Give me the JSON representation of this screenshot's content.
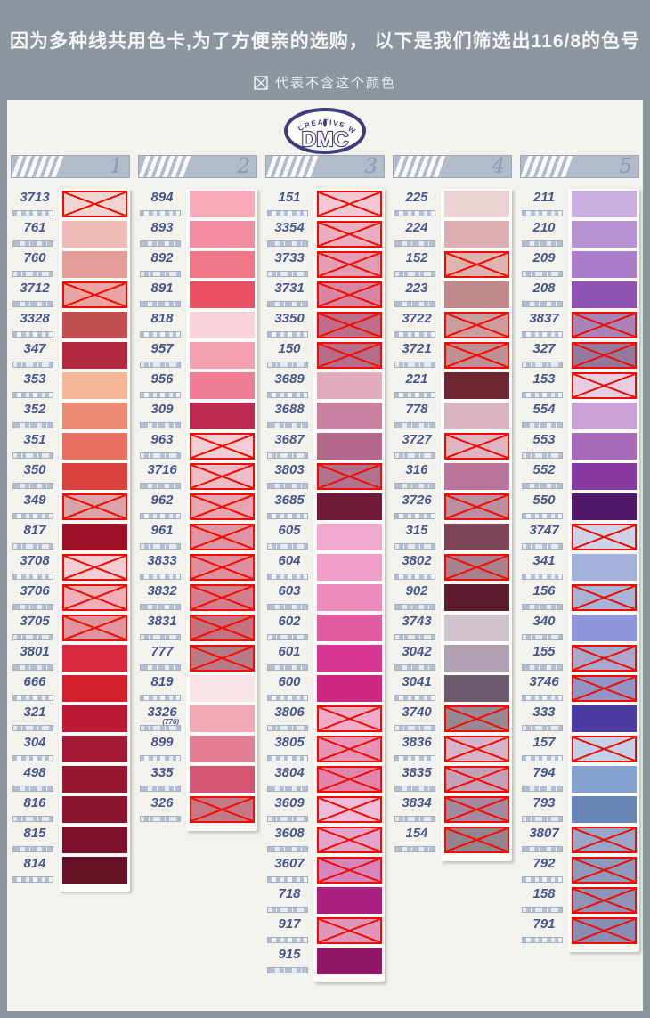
{
  "header": {
    "line1": "因为多种线共用色卡,为了方便亲的选购， 以下是我们筛选出116/8的色号",
    "line2": "代表不含这个颜色"
  },
  "logo": {
    "arc_text": "CREATIVE WORLD",
    "name": "DMC"
  },
  "theme": {
    "page_bg": "#8d959e",
    "card_bg": "#f3f2ec",
    "column_header_bg": "#b1bbc9",
    "code_text": "#46568c",
    "cross_red": "#f30b00",
    "strip_white": "#fcfbf7",
    "logo_indigo": "#3f3c7c"
  },
  "columns": [
    {
      "number": "1",
      "rows": [
        {
          "code": "3713",
          "color": "#f2d4d1",
          "excluded": true
        },
        {
          "code": "761",
          "color": "#eebbb6",
          "excluded": false
        },
        {
          "code": "760",
          "color": "#e29d99",
          "excluded": false
        },
        {
          "code": "3712",
          "color": "#e9a5a2",
          "excluded": true
        },
        {
          "code": "3328",
          "color": "#c14f50",
          "excluded": false
        },
        {
          "code": "347",
          "color": "#b3293f",
          "excluded": false
        },
        {
          "code": "353",
          "color": "#f6b698",
          "excluded": false
        },
        {
          "code": "352",
          "color": "#ec8b74",
          "excluded": false
        },
        {
          "code": "351",
          "color": "#e8705e",
          "excluded": false
        },
        {
          "code": "350",
          "color": "#d8423a",
          "excluded": false
        },
        {
          "code": "349",
          "color": "#d9a3a8",
          "excluded": true
        },
        {
          "code": "817",
          "color": "#9c1126",
          "excluded": false
        },
        {
          "code": "3708",
          "color": "#f6cdd3",
          "excluded": true
        },
        {
          "code": "3706",
          "color": "#f0aeb6",
          "excluded": true
        },
        {
          "code": "3705",
          "color": "#e2949e",
          "excluded": true
        },
        {
          "code": "3801",
          "color": "#d82940",
          "excluded": false
        },
        {
          "code": "666",
          "color": "#d2202c",
          "excluded": false
        },
        {
          "code": "321",
          "color": "#ba1a33",
          "excluded": false
        },
        {
          "code": "304",
          "color": "#a31832",
          "excluded": false
        },
        {
          "code": "498",
          "color": "#96172f",
          "excluded": false
        },
        {
          "code": "816",
          "color": "#8c142f",
          "excluded": false
        },
        {
          "code": "815",
          "color": "#7d112b",
          "excluded": false
        },
        {
          "code": "814",
          "color": "#661126",
          "excluded": false
        }
      ]
    },
    {
      "number": "2",
      "rows": [
        {
          "code": "894",
          "color": "#f7abb9",
          "excluded": false
        },
        {
          "code": "893",
          "color": "#f28da1",
          "excluded": false
        },
        {
          "code": "892",
          "color": "#f17688",
          "excluded": false
        },
        {
          "code": "891",
          "color": "#ea5064",
          "excluded": false
        },
        {
          "code": "818",
          "color": "#f8d4da",
          "excluded": false
        },
        {
          "code": "957",
          "color": "#f5a0b1",
          "excluded": false
        },
        {
          "code": "956",
          "color": "#ef7e95",
          "excluded": false
        },
        {
          "code": "309",
          "color": "#bd2b52",
          "excluded": false
        },
        {
          "code": "963",
          "color": "#f3cdd4",
          "excluded": true
        },
        {
          "code": "3716",
          "color": "#f0bdc7",
          "excluded": true
        },
        {
          "code": "962",
          "color": "#e9a4b1",
          "excluded": true
        },
        {
          "code": "961",
          "color": "#de94a3",
          "excluded": true
        },
        {
          "code": "3833",
          "color": "#dc8f9c",
          "excluded": true
        },
        {
          "code": "3832",
          "color": "#d27e8e",
          "excluded": true
        },
        {
          "code": "3831",
          "color": "#c3727f",
          "excluded": true
        },
        {
          "code": "777",
          "color": "#b57c87",
          "excluded": true
        },
        {
          "code": "819",
          "color": "#f9e4e5",
          "excluded": false
        },
        {
          "code": "3326",
          "sub": "(776)",
          "color": "#f2a8b5",
          "excluded": false
        },
        {
          "code": "899",
          "color": "#e27d93",
          "excluded": false
        },
        {
          "code": "335",
          "color": "#d55673",
          "excluded": false
        },
        {
          "code": "326",
          "color": "#c47987",
          "excluded": true
        }
      ]
    },
    {
      "number": "3",
      "rows": [
        {
          "code": "151",
          "color": "#f3c8d3",
          "excluded": true
        },
        {
          "code": "3354",
          "color": "#e9afbe",
          "excluded": true
        },
        {
          "code": "3733",
          "color": "#e29db3",
          "excluded": true
        },
        {
          "code": "3731",
          "color": "#d886a1",
          "excluded": true
        },
        {
          "code": "3350",
          "color": "#c06d89",
          "excluded": true
        },
        {
          "code": "150",
          "color": "#b76d87",
          "excluded": true
        },
        {
          "code": "3689",
          "color": "#e0aabf",
          "excluded": false
        },
        {
          "code": "3688",
          "color": "#c980a1",
          "excluded": false
        },
        {
          "code": "3687",
          "color": "#b5688b",
          "excluded": false
        },
        {
          "code": "3803",
          "color": "#b1728e",
          "excluded": true
        },
        {
          "code": "3685",
          "color": "#6f1837",
          "excluded": false
        },
        {
          "code": "605",
          "color": "#f1a9cd",
          "excluded": false
        },
        {
          "code": "604",
          "color": "#f19dc9",
          "excluded": false
        },
        {
          "code": "603",
          "color": "#ee8bbd",
          "excluded": false
        },
        {
          "code": "602",
          "color": "#e05b9f",
          "excluded": false
        },
        {
          "code": "601",
          "color": "#d73692",
          "excluded": false
        },
        {
          "code": "600",
          "color": "#cc2781",
          "excluded": false
        },
        {
          "code": "3806",
          "color": "#efabc7",
          "excluded": true
        },
        {
          "code": "3805",
          "color": "#e892b5",
          "excluded": true
        },
        {
          "code": "3804",
          "color": "#e284ac",
          "excluded": true
        },
        {
          "code": "3609",
          "color": "#eebbd9",
          "excluded": true
        },
        {
          "code": "3608",
          "color": "#e3a4cc",
          "excluded": true
        },
        {
          "code": "3607",
          "color": "#d684b9",
          "excluded": true
        },
        {
          "code": "718",
          "color": "#ab207f",
          "excluded": false
        },
        {
          "code": "917",
          "color": "#e095bb",
          "excluded": true
        },
        {
          "code": "915",
          "color": "#8f1766",
          "excluded": false
        }
      ]
    },
    {
      "number": "4",
      "rows": [
        {
          "code": "225",
          "color": "#edd2d3",
          "excluded": false
        },
        {
          "code": "224",
          "color": "#ddaeaf",
          "excluded": false
        },
        {
          "code": "152",
          "color": "#dcb4b1",
          "excluded": true
        },
        {
          "code": "223",
          "color": "#c18b8b",
          "excluded": false
        },
        {
          "code": "3722",
          "color": "#ca9e9f",
          "excluded": true
        },
        {
          "code": "3721",
          "color": "#be8f94",
          "excluded": true
        },
        {
          "code": "221",
          "color": "#6f2431",
          "excluded": false
        },
        {
          "code": "778",
          "color": "#d9b3c1",
          "excluded": false
        },
        {
          "code": "3727",
          "color": "#ddb5c3",
          "excluded": true
        },
        {
          "code": "316",
          "color": "#b9759b",
          "excluded": false
        },
        {
          "code": "3726",
          "color": "#ba8f9f",
          "excluded": true
        },
        {
          "code": "315",
          "color": "#7d4357",
          "excluded": false
        },
        {
          "code": "3802",
          "color": "#a7818f",
          "excluded": true
        },
        {
          "code": "902",
          "color": "#5b1c2f",
          "excluded": false
        },
        {
          "code": "3743",
          "color": "#d0c3ce",
          "excluded": false
        },
        {
          "code": "3042",
          "color": "#b1a1b3",
          "excluded": false
        },
        {
          "code": "3041",
          "color": "#6d5a6d",
          "excluded": false
        },
        {
          "code": "3740",
          "color": "#978895",
          "excluded": true
        },
        {
          "code": "3836",
          "color": "#d4b4c9",
          "excluded": true
        },
        {
          "code": "3835",
          "color": "#c3a0b9",
          "excluded": true
        },
        {
          "code": "3834",
          "color": "#a588a1",
          "excluded": true
        },
        {
          "code": "154",
          "color": "#938490",
          "excluded": true
        }
      ]
    },
    {
      "number": "5",
      "rows": [
        {
          "code": "211",
          "color": "#caaede",
          "excluded": false
        },
        {
          "code": "210",
          "color": "#b892d3",
          "excluded": false
        },
        {
          "code": "209",
          "color": "#aa7dc9",
          "excluded": false
        },
        {
          "code": "208",
          "color": "#8c53b1",
          "excluded": false
        },
        {
          "code": "3837",
          "color": "#aa84b9",
          "excluded": true
        },
        {
          "code": "327",
          "color": "#94799f",
          "excluded": true
        },
        {
          "code": "153",
          "color": "#e6cde1",
          "excluded": true
        },
        {
          "code": "554",
          "color": "#caa1d7",
          "excluded": false
        },
        {
          "code": "553",
          "color": "#a66ab9",
          "excluded": false
        },
        {
          "code": "552",
          "color": "#873aa1",
          "excluded": false
        },
        {
          "code": "550",
          "color": "#511769",
          "excluded": false
        },
        {
          "code": "3747",
          "color": "#ced3e7",
          "excluded": true
        },
        {
          "code": "341",
          "color": "#a3b1db",
          "excluded": false
        },
        {
          "code": "156",
          "color": "#a9b3d5",
          "excluded": true
        },
        {
          "code": "340",
          "color": "#8f96d9",
          "excluded": false
        },
        {
          "code": "155",
          "color": "#aaa7cd",
          "excluded": true
        },
        {
          "code": "3746",
          "color": "#9493c5",
          "excluded": true
        },
        {
          "code": "333",
          "color": "#4b3ba1",
          "excluded": false
        },
        {
          "code": "157",
          "color": "#c4d0e9",
          "excluded": true
        },
        {
          "code": "794",
          "color": "#85a1cf",
          "excluded": false
        },
        {
          "code": "793",
          "color": "#6785b5",
          "excluded": false
        },
        {
          "code": "3807",
          "color": "#9ba5c9",
          "excluded": true
        },
        {
          "code": "792",
          "color": "#9098bd",
          "excluded": true
        },
        {
          "code": "158",
          "color": "#8f94b7",
          "excluded": true
        },
        {
          "code": "791",
          "color": "#888eb3",
          "excluded": true
        }
      ]
    }
  ]
}
